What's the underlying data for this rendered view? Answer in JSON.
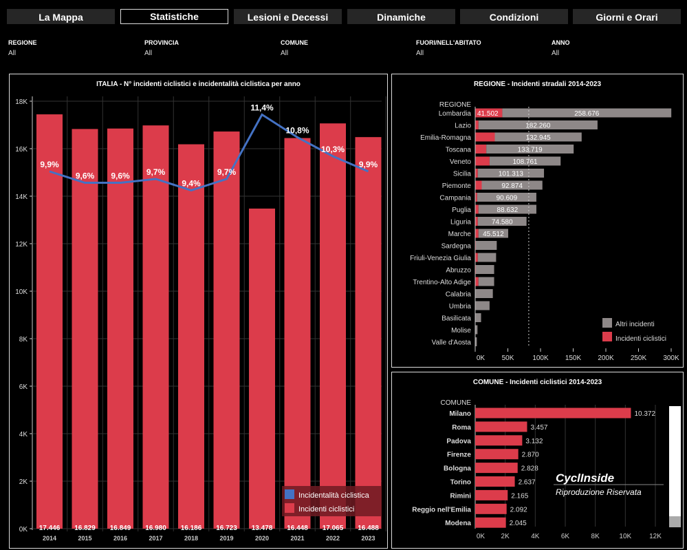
{
  "tabs": [
    {
      "label": "La Mappa"
    },
    {
      "label": "Statistiche",
      "active": true
    },
    {
      "label": "Lesioni e Decessi"
    },
    {
      "label": "Dinamiche"
    },
    {
      "label": "Condizioni"
    },
    {
      "label": "Giorni e Orari"
    }
  ],
  "filters": [
    {
      "label": "REGIONE",
      "value": "All"
    },
    {
      "label": "PROVINCIA",
      "value": "All"
    },
    {
      "label": "COMUNE",
      "value": "All"
    },
    {
      "label": "FUORI/NELL'ABITATO",
      "value": "All"
    },
    {
      "label": "ANNO",
      "value": "All"
    }
  ],
  "colors": {
    "cyclist": "#dc3c4b",
    "other": "#8e8888",
    "line": "#4472c4"
  },
  "watermark": {
    "brand": "CyclInside",
    "text": "Riproduzione Riservata"
  },
  "chart_data": [
    {
      "type": "bar",
      "title": "ITALIA - N° incidenti ciclistici e incidentalità ciclistica per anno",
      "categories": [
        "2014",
        "2015",
        "2016",
        "2017",
        "2018",
        "2019",
        "2020",
        "2021",
        "2022",
        "2023"
      ],
      "ylim": [
        0,
        18000
      ],
      "yticks": [
        "0K",
        "2K",
        "4K",
        "6K",
        "8K",
        "10K",
        "12K",
        "14K",
        "16K",
        "18K"
      ],
      "series": [
        {
          "name": "Incidenti  ciclistici",
          "type": "bar",
          "values": [
            17446,
            16829,
            16849,
            16980,
            16186,
            16723,
            13478,
            16448,
            17065,
            16488
          ],
          "labels": [
            "17.446",
            "16.829",
            "16.849",
            "16.980",
            "16.186",
            "16.723",
            "13.478",
            "16.448",
            "17.065",
            "16.488"
          ]
        },
        {
          "name": "Incidentalità  ciclistica",
          "type": "line",
          "values": [
            9.9,
            9.6,
            9.6,
            9.7,
            9.4,
            9.7,
            11.4,
            10.8,
            10.3,
            9.9
          ],
          "labels": [
            "9,9%",
            "9,6%",
            "9,6%",
            "9,7%",
            "9,4%",
            "9,7%",
            "11,4%",
            "10,8%",
            "10,3%",
            "9,9%"
          ]
        }
      ],
      "legend": "bottom-right"
    },
    {
      "type": "bar",
      "orientation": "horizontal",
      "stacked": true,
      "title": "REGIONE - Incidenti stradali 2014-2023",
      "ylabel": "REGIONE",
      "xlim": [
        0,
        300000
      ],
      "xticks": [
        "0K",
        "50K",
        "100K",
        "150K",
        "200K",
        "250K",
        "300K"
      ],
      "categories": [
        "Lombardia",
        "Lazio",
        "Emilia-Romagna",
        "Toscana",
        "Veneto",
        "Sicilia",
        "Piemonte",
        "Campania",
        "Puglia",
        "Liguria",
        "Marche",
        "Sardegna",
        "Friuli-Venezia Giulia",
        "Abruzzo",
        "Trentino-Alto Adige",
        "Calabria",
        "Umbria",
        "Basilicata",
        "Molise",
        "Valle d'Aosta"
      ],
      "series": [
        {
          "name": "Incidenti ciclistici",
          "values": [
            41502,
            5000,
            30000,
            17000,
            22000,
            4000,
            10000,
            3000,
            5000,
            4000,
            5000,
            1000,
            4000,
            1000,
            5000,
            500,
            500,
            300,
            100,
            200
          ],
          "labels": [
            "41.502",
            "",
            "",
            "",
            "",
            "",
            "",
            "",
            "",
            "",
            "",
            "",
            "",
            "",
            "",
            "",
            "",
            "",
            "",
            ""
          ]
        },
        {
          "name": "Altri incidenti",
          "values": [
            258676,
            182260,
            132945,
            133719,
            108761,
            101313,
            92874,
            90609,
            88632,
            74580,
            45512,
            32000,
            28000,
            28000,
            24000,
            26500,
            21500,
            8700,
            3400,
            2300
          ],
          "labels": [
            "258.676",
            "182.260",
            "132.945",
            "133.719",
            "108.761",
            "101.313",
            "92.874",
            "90.609",
            "88.632",
            "74.580",
            "45.512",
            "",
            "",
            "",
            "",
            "",
            "",
            "",
            "",
            ""
          ]
        }
      ],
      "reference_line": 82000,
      "legend": "bottom-right"
    },
    {
      "type": "bar",
      "orientation": "horizontal",
      "title": "COMUNE - Incidenti ciclistici 2014-2023",
      "ylabel": "COMUNE",
      "xlim": [
        0,
        12000
      ],
      "xticks": [
        "0K",
        "2K",
        "4K",
        "6K",
        "8K",
        "10K",
        "12K"
      ],
      "categories": [
        "Milano",
        "Roma",
        "Padova",
        "Firenze",
        "Bologna",
        "Torino",
        "Rimini",
        "Reggio nell'Emilia",
        "Modena"
      ],
      "values": [
        10372,
        3457,
        3132,
        2870,
        2828,
        2637,
        2165,
        2092,
        2045
      ],
      "labels": [
        "10.372",
        "3.457",
        "3.132",
        "2.870",
        "2.828",
        "2.637",
        "2.165",
        "2.092",
        "2.045"
      ]
    }
  ]
}
